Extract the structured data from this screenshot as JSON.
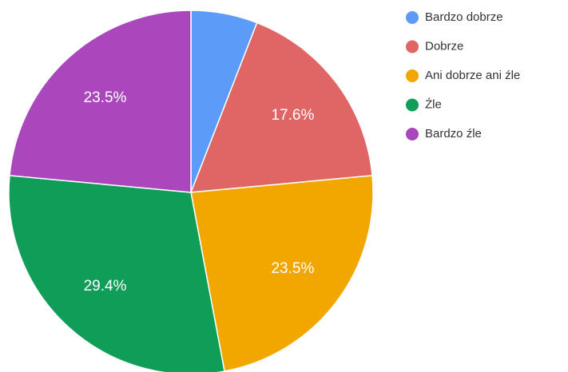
{
  "chart_data": {
    "type": "pie",
    "categories": [
      "Bardzo dobrze",
      "Dobrze",
      "Ani dobrze ani źle",
      "Źle",
      "Bardzo źle"
    ],
    "values": [
      5.9,
      17.6,
      23.5,
      29.4,
      23.5
    ],
    "value_labels": [
      null,
      "17.6%",
      "23.5%",
      "29.4%",
      "23.5%"
    ],
    "colors": [
      "#5c9bf7",
      "#e06666",
      "#f2a600",
      "#0f9d58",
      "#ab47bc"
    ],
    "legend": "right"
  }
}
